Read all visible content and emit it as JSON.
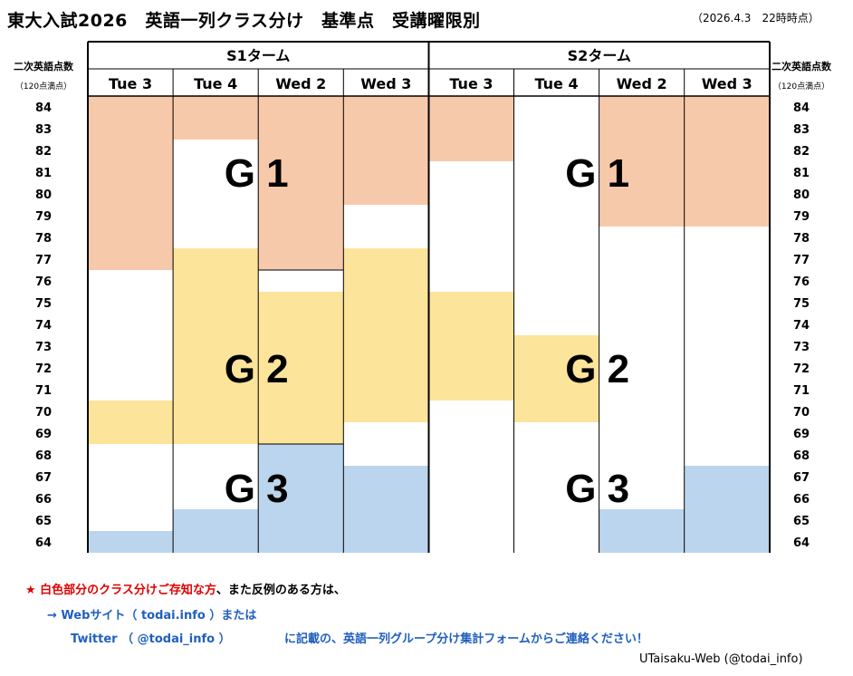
{
  "title": "東大入試2026　英語一列クラス分け　基準点　受講曜限別",
  "timestamp": "（2026.4.3　22時時点）",
  "y_axis_label": "二次英語点数",
  "y_axis_sublabel": "（120点満点）",
  "colors": {
    "G1": "#f7c9ab",
    "G2": "#fde49b",
    "G3": "#bcd5ee"
  },
  "chart_data": {
    "type": "table",
    "y_values": [
      84,
      83,
      82,
      81,
      80,
      79,
      78,
      77,
      76,
      75,
      74,
      73,
      72,
      71,
      70,
      69,
      68,
      67,
      66,
      65,
      64
    ],
    "terms": [
      {
        "name": "S1ターム",
        "days": [
          "Tue 3",
          "Tue 4",
          "Wed 2",
          "Wed 3"
        ]
      },
      {
        "name": "S2ターム",
        "days": [
          "Tue 3",
          "Tue 4",
          "Wed 2",
          "Wed 3"
        ]
      }
    ],
    "cells": [
      [
        {
          "group": "G1",
          "from": 77,
          "to": 84
        },
        {
          "group": "G2",
          "from": 69,
          "to": 70
        },
        {
          "group": "G3",
          "from": 64,
          "to": 64
        }
      ],
      [
        {
          "group": "G1",
          "from": 83,
          "to": 84
        },
        {
          "group": "G2",
          "from": 69,
          "to": 77
        },
        {
          "group": "G3",
          "from": 64,
          "to": 65
        }
      ],
      [
        {
          "group": "G1",
          "from": 77,
          "to": 84
        },
        {
          "group": "G2",
          "from": 69,
          "to": 75
        },
        {
          "group": "G3",
          "from": 64,
          "to": 68
        }
      ],
      [
        {
          "group": "G1",
          "from": 80,
          "to": 84
        },
        {
          "group": "G2",
          "from": 70,
          "to": 77
        },
        {
          "group": "G3",
          "from": 64,
          "to": 67
        }
      ],
      [
        {
          "group": "G1",
          "from": 82,
          "to": 84
        },
        {
          "group": "G2",
          "from": 71,
          "to": 75
        }
      ],
      [
        {
          "group": "G2",
          "from": 70,
          "to": 73
        }
      ],
      [
        {
          "group": "G1",
          "from": 79,
          "to": 84
        },
        {
          "group": "G3",
          "from": 64,
          "to": 65
        }
      ],
      [
        {
          "group": "G1",
          "from": 79,
          "to": 84
        },
        {
          "group": "G3",
          "from": 64,
          "to": 67
        }
      ]
    ],
    "group_labels": [
      {
        "term": 0,
        "text": "G 1",
        "score": 81
      },
      {
        "term": 0,
        "text": "G 2",
        "score": 72
      },
      {
        "term": 0,
        "text": "G 3",
        "score": 66.5
      },
      {
        "term": 1,
        "text": "G 1",
        "score": 81
      },
      {
        "term": 1,
        "text": "G 2",
        "score": 72
      },
      {
        "term": 1,
        "text": "G 3",
        "score": 66.5
      }
    ]
  },
  "footnote": {
    "line1_red": "★ 白色部分のクラス分けご存知な方",
    "line1_black": "、また反例のある方は、",
    "line2": "→ Webサイト（ todai.info ）または",
    "line3_twitter": "Twitter （ @todai_info ）",
    "line3_form": "に記載の、英語一列グループ分け集計フォームからご連絡ください！"
  },
  "credit": "UTaisaku-Web (@todai_info)"
}
